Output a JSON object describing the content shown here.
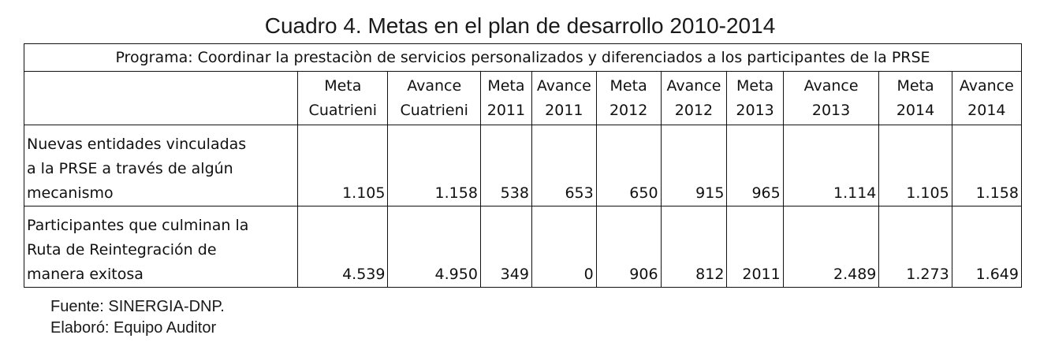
{
  "title": "Cuadro 4. Metas en el plan de desarrollo 2010-2014",
  "table": {
    "program": "Programa: Coordinar la prestaciòn de servicios personalizados y diferenciados a los participantes de la PRSE",
    "columns": [
      {
        "l1": "Meta",
        "l2": "Cuatrieni"
      },
      {
        "l1": "Avance",
        "l2": "Cuatrieni"
      },
      {
        "l1": "Meta",
        "l2": "2011"
      },
      {
        "l1": "Avance",
        "l2": "2011"
      },
      {
        "l1": "Meta",
        "l2": "2012"
      },
      {
        "l1": "Avance",
        "l2": "2012"
      },
      {
        "l1": "Meta",
        "l2": "2013"
      },
      {
        "l1": "Avance",
        "l2": "2013"
      },
      {
        "l1": "Meta",
        "l2": "2014"
      },
      {
        "l1": "Avance",
        "l2": "2014"
      }
    ],
    "rows": [
      {
        "label": [
          "Nuevas entidades vinculadas",
          "a la PRSE a través de algún",
          "mecanismo"
        ],
        "values": [
          "1.105",
          "1.158",
          "538",
          "653",
          "650",
          "915",
          "965",
          "1.114",
          "1.105",
          "1.158"
        ]
      },
      {
        "label": [
          "Participantes que culminan la",
          "Ruta de Reintegración de",
          "manera exitosa"
        ],
        "values": [
          "4.539",
          "4.950",
          "349",
          "0",
          "906",
          "812",
          "2011",
          "2.489",
          "1.273",
          "1.649"
        ]
      }
    ]
  },
  "notes": {
    "source": "Fuente: SINERGIA-DNP.",
    "author": "Elaboró: Equipo Auditor"
  }
}
